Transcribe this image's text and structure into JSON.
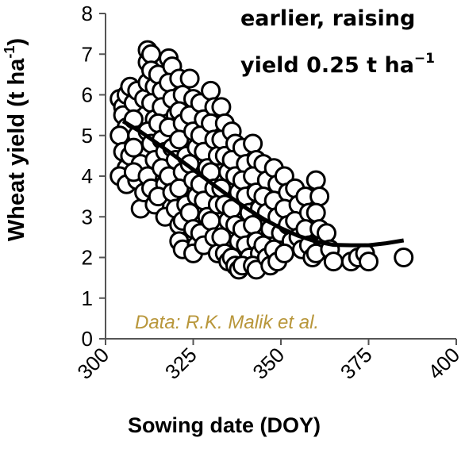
{
  "chart_data": {
    "type": "scatter",
    "xlabel": "Sowing date (DOY)",
    "ylabel_main": "Wheat yield (t ha",
    "ylabel_sup": "-1",
    "ylabel_close": ")",
    "xlim": [
      300,
      400
    ],
    "ylim": [
      0,
      8
    ],
    "xticks": [
      300,
      325,
      350,
      375,
      400
    ],
    "yticks": [
      0,
      1,
      2,
      3,
      4,
      5,
      6,
      7,
      8
    ],
    "annotation_line1": "earlier, raising",
    "annotation_line2_main": "yield 0.25 t ha",
    "annotation_line2_sup": "−1",
    "source_note": "Data: R.K. Malik et al.",
    "points": [
      [
        304,
        5.9
      ],
      [
        305,
        5.7
      ],
      [
        306,
        6.0
      ],
      [
        307,
        6.2
      ],
      [
        305,
        5.5
      ],
      [
        306,
        5.2
      ],
      [
        304,
        5.0
      ],
      [
        305,
        4.6
      ],
      [
        306,
        4.2
      ],
      [
        304,
        4.0
      ],
      [
        306,
        3.8
      ],
      [
        307,
        4.5
      ],
      [
        308,
        5.8
      ],
      [
        309,
        6.1
      ],
      [
        308,
        5.4
      ],
      [
        309,
        5.0
      ],
      [
        308,
        4.7
      ],
      [
        310,
        4.3
      ],
      [
        309,
        3.9
      ],
      [
        310,
        3.2
      ],
      [
        311,
        3.6
      ],
      [
        308,
        4.1
      ],
      [
        311,
        5.9
      ],
      [
        312,
        6.3
      ],
      [
        312,
        6.8
      ],
      [
        312,
        7.1
      ],
      [
        313,
        7.0
      ],
      [
        313,
        6.6
      ],
      [
        314,
        6.2
      ],
      [
        313,
        5.8
      ],
      [
        314,
        5.4
      ],
      [
        312,
        5.1
      ],
      [
        313,
        4.8
      ],
      [
        314,
        4.4
      ],
      [
        312,
        4.0
      ],
      [
        313,
        3.7
      ],
      [
        314,
        3.3
      ],
      [
        315,
        6.5
      ],
      [
        316,
        6.1
      ],
      [
        316,
        5.7
      ],
      [
        315,
        5.3
      ],
      [
        316,
        4.9
      ],
      [
        317,
        4.6
      ],
      [
        316,
        4.2
      ],
      [
        317,
        3.8
      ],
      [
        315,
        3.5
      ],
      [
        317,
        3.0
      ],
      [
        318,
        6.9
      ],
      [
        319,
        6.7
      ],
      [
        318,
        6.3
      ],
      [
        319,
        5.9
      ],
      [
        320,
        5.5
      ],
      [
        318,
        5.2
      ],
      [
        319,
        4.7
      ],
      [
        320,
        4.4
      ],
      [
        318,
        4.0
      ],
      [
        319,
        3.6
      ],
      [
        320,
        3.2
      ],
      [
        321,
        2.8
      ],
      [
        321,
        6.4
      ],
      [
        322,
        6.0
      ],
      [
        321,
        5.6
      ],
      [
        322,
        5.3
      ],
      [
        321,
        4.9
      ],
      [
        323,
        4.5
      ],
      [
        322,
        4.1
      ],
      [
        321,
        3.7
      ],
      [
        323,
        3.3
      ],
      [
        322,
        2.9
      ],
      [
        321,
        2.4
      ],
      [
        322,
        2.2
      ],
      [
        324,
        6.4
      ],
      [
        325,
        5.9
      ],
      [
        324,
        5.5
      ],
      [
        325,
        5.1
      ],
      [
        326,
        4.7
      ],
      [
        324,
        4.3
      ],
      [
        325,
        3.9
      ],
      [
        326,
        3.5
      ],
      [
        324,
        3.1
      ],
      [
        325,
        2.7
      ],
      [
        326,
        2.3
      ],
      [
        325,
        2.1
      ],
      [
        327,
        5.8
      ],
      [
        328,
        5.4
      ],
      [
        327,
        5.0
      ],
      [
        328,
        4.6
      ],
      [
        329,
        4.2
      ],
      [
        327,
        3.8
      ],
      [
        328,
        3.4
      ],
      [
        329,
        3.0
      ],
      [
        327,
        2.6
      ],
      [
        328,
        2.3
      ],
      [
        330,
        6.1
      ],
      [
        331,
        5.7
      ],
      [
        330,
        5.3
      ],
      [
        331,
        4.9
      ],
      [
        332,
        4.5
      ],
      [
        330,
        4.1
      ],
      [
        331,
        3.7
      ],
      [
        332,
        3.3
      ],
      [
        330,
        2.9
      ],
      [
        331,
        2.5
      ],
      [
        332,
        2.1
      ],
      [
        333,
        5.7
      ],
      [
        334,
        5.3
      ],
      [
        333,
        4.9
      ],
      [
        334,
        4.5
      ],
      [
        335,
        4.1
      ],
      [
        333,
        3.7
      ],
      [
        334,
        3.3
      ],
      [
        335,
        2.9
      ],
      [
        333,
        2.5
      ],
      [
        334,
        2.1
      ],
      [
        335,
        1.9
      ],
      [
        336,
        5.1
      ],
      [
        337,
        4.8
      ],
      [
        336,
        4.4
      ],
      [
        337,
        4.0
      ],
      [
        338,
        3.6
      ],
      [
        336,
        3.2
      ],
      [
        337,
        2.8
      ],
      [
        338,
        2.4
      ],
      [
        336,
        2.0
      ],
      [
        337,
        1.8
      ],
      [
        338,
        1.7
      ],
      [
        339,
        4.7
      ],
      [
        340,
        4.3
      ],
      [
        339,
        3.9
      ],
      [
        340,
        3.5
      ],
      [
        341,
        3.1
      ],
      [
        339,
        2.7
      ],
      [
        340,
        2.3
      ],
      [
        341,
        2.0
      ],
      [
        339,
        1.8
      ],
      [
        342,
        4.8
      ],
      [
        343,
        4.4
      ],
      [
        342,
        4.0
      ],
      [
        343,
        3.6
      ],
      [
        344,
        3.2
      ],
      [
        342,
        2.8
      ],
      [
        343,
        2.4
      ],
      [
        344,
        2.1
      ],
      [
        342,
        1.8
      ],
      [
        343,
        1.7
      ],
      [
        345,
        4.3
      ],
      [
        346,
        3.9
      ],
      [
        345,
        3.5
      ],
      [
        346,
        3.1
      ],
      [
        347,
        2.7
      ],
      [
        345,
        2.3
      ],
      [
        346,
        2.0
      ],
      [
        347,
        1.8
      ],
      [
        348,
        4.2
      ],
      [
        349,
        3.8
      ],
      [
        348,
        3.4
      ],
      [
        349,
        3.0
      ],
      [
        350,
        2.6
      ],
      [
        348,
        2.2
      ],
      [
        349,
        1.9
      ],
      [
        351,
        4.0
      ],
      [
        352,
        3.6
      ],
      [
        351,
        3.2
      ],
      [
        352,
        2.8
      ],
      [
        353,
        2.4
      ],
      [
        351,
        2.1
      ],
      [
        354,
        3.7
      ],
      [
        355,
        3.3
      ],
      [
        354,
        2.9
      ],
      [
        355,
        2.5
      ],
      [
        356,
        2.2
      ],
      [
        357,
        3.5
      ],
      [
        358,
        3.1
      ],
      [
        357,
        2.7
      ],
      [
        358,
        2.3
      ],
      [
        359,
        2.0
      ],
      [
        360,
        3.9
      ],
      [
        361,
        3.5
      ],
      [
        360,
        3.1
      ],
      [
        361,
        2.7
      ],
      [
        362,
        2.3
      ],
      [
        360,
        2.1
      ],
      [
        363,
        2.6
      ],
      [
        364,
        2.2
      ],
      [
        365,
        1.9
      ],
      [
        370,
        1.9
      ],
      [
        372,
        2.0
      ],
      [
        374,
        2.1
      ],
      [
        375,
        1.9
      ],
      [
        385,
        2.0
      ]
    ],
    "fit_curve": [
      [
        305,
        5.35
      ],
      [
        310,
        5.09
      ],
      [
        315,
        4.79
      ],
      [
        320,
        4.48
      ],
      [
        325,
        4.16
      ],
      [
        330,
        3.84
      ],
      [
        335,
        3.52
      ],
      [
        340,
        3.22
      ],
      [
        345,
        2.95
      ],
      [
        350,
        2.72
      ],
      [
        355,
        2.53
      ],
      [
        360,
        2.39
      ],
      [
        365,
        2.31
      ],
      [
        370,
        2.3
      ],
      [
        375,
        2.3
      ],
      [
        380,
        2.35
      ],
      [
        385,
        2.42
      ]
    ]
  }
}
